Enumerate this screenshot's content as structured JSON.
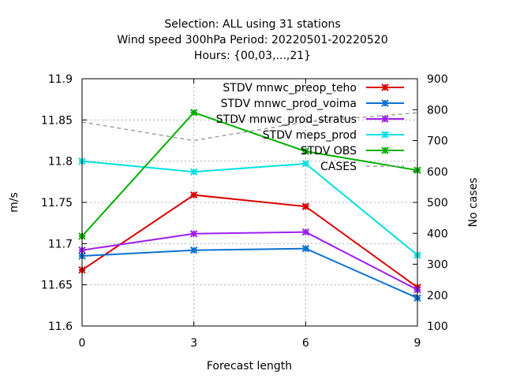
{
  "chart_data": {
    "type": "line",
    "title_lines": [
      "Selection: ALL using    31 stations",
      "Wind speed 300hPa   Period: 20220501-20220520",
      "Hours: {00,03,...,21}"
    ],
    "xlabel": "Forecast length",
    "ylabel": "m/s",
    "y2label": "No cases",
    "x": [
      0,
      3,
      6,
      9
    ],
    "xticks": [
      "0",
      "3",
      "6",
      "9"
    ],
    "xlim": [
      0,
      9
    ],
    "ylim": [
      11.6,
      11.9
    ],
    "yticks": [
      "11.6",
      "11.65",
      "11.7",
      "11.75",
      "11.8",
      "11.85",
      "11.9"
    ],
    "y2lim": [
      100,
      900
    ],
    "y2ticks": [
      "100",
      "200",
      "300",
      "400",
      "500",
      "600",
      "700",
      "800",
      "900"
    ],
    "grid": true,
    "legend_position": "top-right",
    "series": [
      {
        "name": "STDV mnwc_preop_teho",
        "color": "#dd0000",
        "values": [
          11.668,
          11.759,
          11.745,
          11.647
        ]
      },
      {
        "name": "STDV mnwc_prod_voima",
        "color": "#0a72d2",
        "values": [
          11.685,
          11.692,
          11.694,
          11.634
        ]
      },
      {
        "name": "STDV mnwc_prod_stratus",
        "color": "#a020f0",
        "values": [
          11.692,
          11.712,
          11.714,
          11.644
        ]
      },
      {
        "name": "STDV meps_prod",
        "color": "#00e0e0",
        "values": [
          11.8,
          11.787,
          11.797,
          11.686
        ]
      },
      {
        "name": "STDV OBS",
        "color": "#00b000",
        "values": [
          11.709,
          11.859,
          11.812,
          11.789
        ]
      }
    ],
    "cases_series": {
      "name": "CASES",
      "color": "#a0a0a0",
      "axis": "y2",
      "values": [
        760,
        700,
        760,
        790
      ]
    }
  }
}
